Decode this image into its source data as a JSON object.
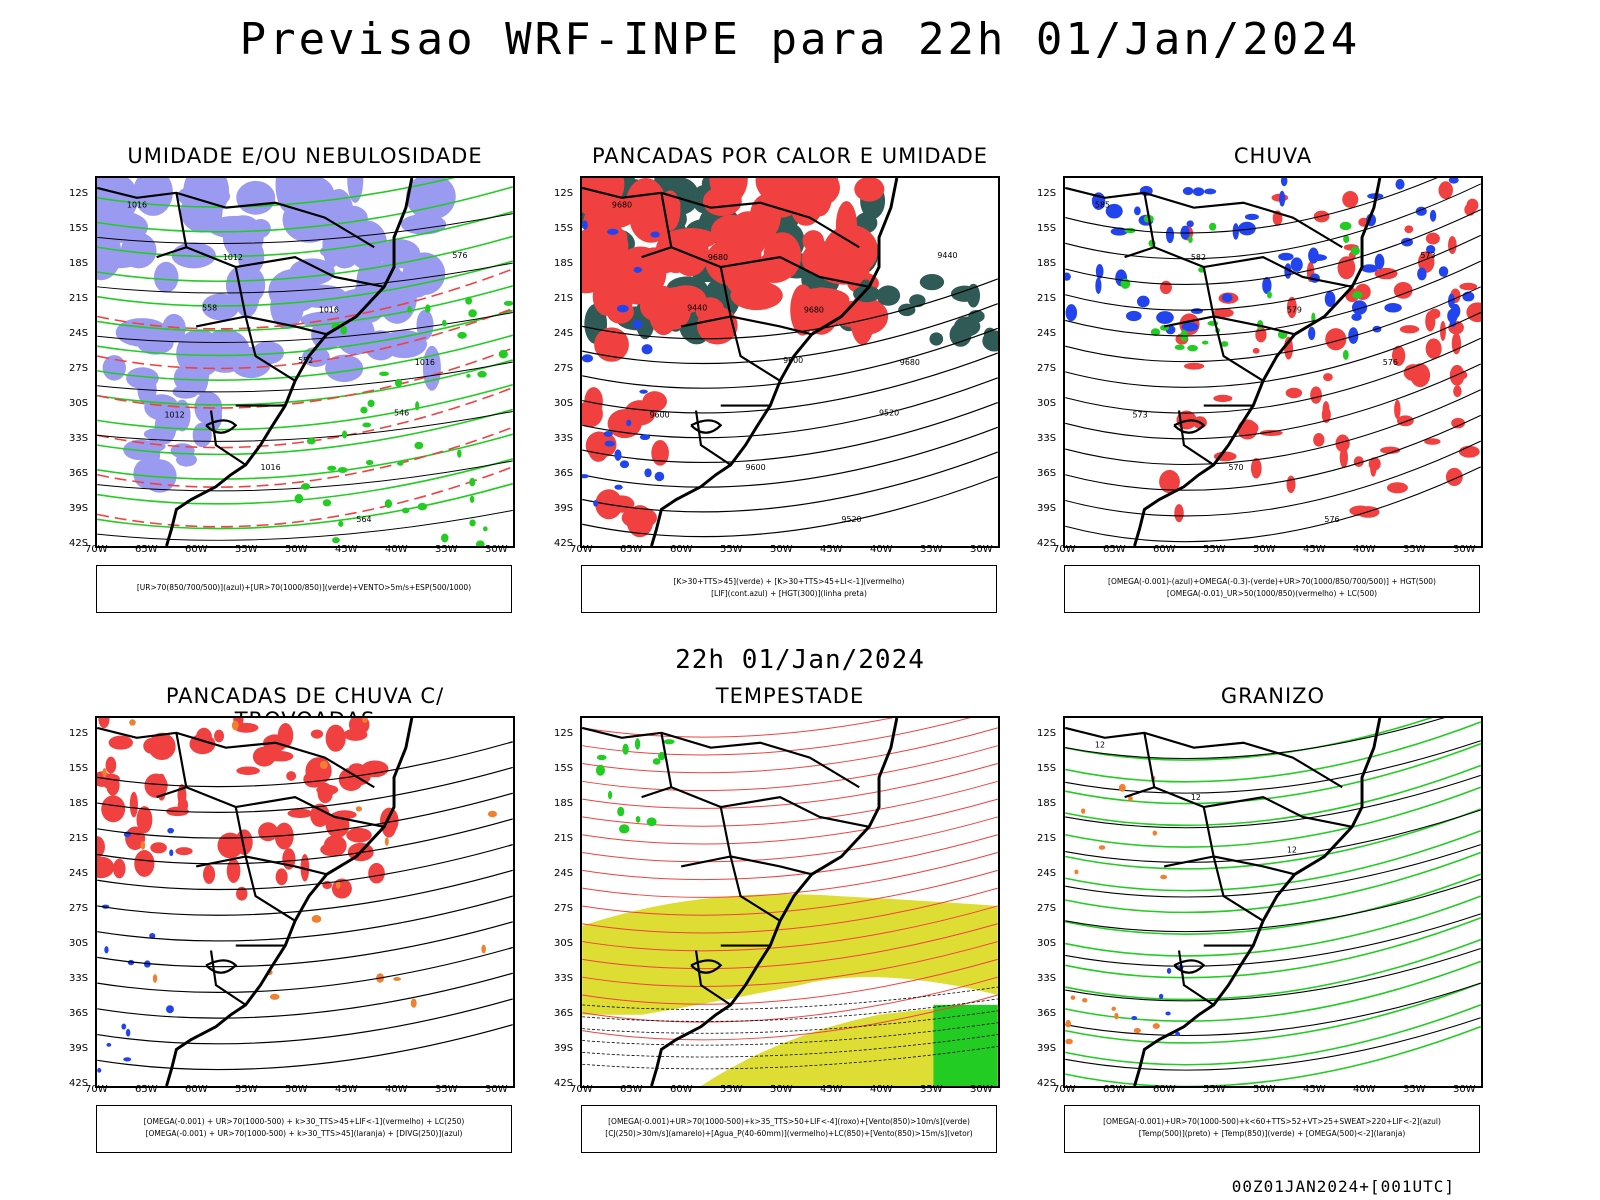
{
  "title": "Previsao WRF-INPE  para 22h 01/Jan/2024",
  "subtitle": "22h 01/Jan/2024",
  "footer": "00Z01JAN2024+[001UTC]",
  "lat_labels": [
    "12S",
    "15S",
    "18S",
    "21S",
    "24S",
    "27S",
    "30S",
    "33S",
    "36S",
    "39S",
    "42S"
  ],
  "lon_labels": [
    "70W",
    "65W",
    "60W",
    "55W",
    "50W",
    "45W",
    "40W",
    "35W",
    "30W"
  ],
  "panels": [
    {
      "title": "UMIDADE E/OU NEBULOSIDADE",
      "legend": [
        "[UR>70(850/700/500)](azul)+[UR>70(1000/850)](verde)+VENTO>5m/s+ESP(500/1000)"
      ],
      "contour_labels": [
        "1016",
        "1012",
        "1016",
        "1016",
        "1012",
        "1016",
        "564",
        "576",
        "558",
        "552",
        "546"
      ]
    },
    {
      "title": "PANCADAS POR CALOR E UMIDADE",
      "legend": [
        "[K>30+TTS>45](verde) + [K>30+TTS>45+LI<-1](vermelho)",
        "[LIF](cont.azul) + [HGT(300)](linha preta)"
      ],
      "contour_labels": [
        "9680",
        "9680",
        "9680",
        "9680",
        "9600",
        "9600",
        "9520",
        "9440",
        "9440",
        "9600",
        "9520"
      ]
    },
    {
      "title": "CHUVA",
      "legend": [
        "[OMEGA(-0.001)-(azul)+OMEGA(-0.3)-(verde)+UR>70(1000/850/700/500)] + HGT(500)",
        "[OMEGA(-0.01)_UR>50(1000/850)(vermelho) + LC(500)"
      ],
      "contour_labels": [
        "585",
        "582",
        "579",
        "576",
        "573",
        "570",
        "576",
        "573"
      ]
    },
    {
      "title": "PANCADAS DE CHUVA C/ TROVOADAS",
      "legend": [
        "[OMEGA(-0.001) + UR>70(1000-500) + k>30_TTS>45+LIF<-1](vermelho) + LC(250)",
        "[OMEGA(-0.001) + UR>70(1000-500) + k>30_TTS>45](laranja) + [DIVG(250)](azul)"
      ],
      "contour_labels": []
    },
    {
      "title": "TEMPESTADE",
      "legend": [
        "[OMEGA(-0.001)+UR>70(1000-500)+k>35_TTS>50+LIF<-4](roxo)+[Vento(850)>10m/s](verde)",
        "[CJ(250)>30m/s](amarelo)+[Agua_P(40-60mm)](vermelho)+LC(850)+[Vento(850)>15m/s](vetor)"
      ],
      "contour_labels": []
    },
    {
      "title": "GRANIZO",
      "legend": [
        "[OMEGA(-0.001)+UR>70(1000-500)+k<60+TTS>52+VT>25+SWEAT>220+LIF<-2](azul)",
        "[Temp(500)](preto) + [Temp(850)](verde) + [OMEGA(500)<-2](laranja)"
      ],
      "contour_labels": [
        "12",
        "12",
        "12"
      ]
    }
  ],
  "colors": {
    "blue_humidity": "#9a9af0",
    "green": "#22cc22",
    "red": "#f04040",
    "dark_teal": "#2f5a55",
    "yellow": "#dddd33",
    "orange": "#f08030",
    "blue": "#2244ee"
  }
}
